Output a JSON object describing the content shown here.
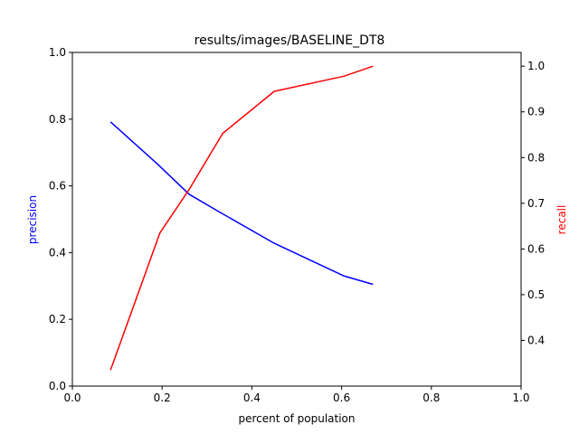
{
  "chart_data": {
    "type": "line",
    "title": "results/images/BASELINE_DT8",
    "xlabel": "percent of population",
    "ylabel_left": "precision",
    "ylabel_right": "recall",
    "xlim": [
      0.0,
      1.0
    ],
    "ylim_left": [
      0.0,
      1.0
    ],
    "ylim_right": [
      0.3,
      1.03
    ],
    "xticks": [
      "0.0",
      "0.2",
      "0.4",
      "0.6",
      "0.8",
      "1.0"
    ],
    "yticks_left": [
      "0.0",
      "0.2",
      "0.4",
      "0.6",
      "0.8",
      "1.0"
    ],
    "yticks_right": [
      "0.4",
      "0.5",
      "0.6",
      "0.7",
      "0.8",
      "0.9",
      "1.0"
    ],
    "grid": false,
    "colors": {
      "precision": "#0000ff",
      "recall": "#ff0000",
      "axes": "#000000"
    },
    "series": [
      {
        "axis": "left",
        "color": "#0000ff",
        "x": [
          0.085,
          0.19,
          0.26,
          0.33,
          0.45,
          0.605,
          0.67
        ],
        "y": [
          0.792,
          0.665,
          0.575,
          0.52,
          0.428,
          0.33,
          0.305
        ]
      },
      {
        "axis": "right",
        "color": "#ff0000",
        "x": [
          0.085,
          0.195,
          0.26,
          0.335,
          0.45,
          0.605,
          0.67
        ],
        "y": [
          0.335,
          0.635,
          0.73,
          0.853,
          0.945,
          0.978,
          1.0
        ]
      }
    ]
  }
}
